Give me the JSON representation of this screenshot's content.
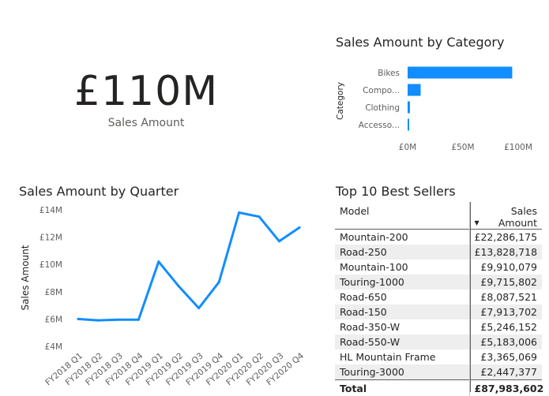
{
  "kpi": {
    "value": "£110M",
    "label": "Sales Amount"
  },
  "category_chart": {
    "title": "Sales Amount by Category",
    "ylabel": "Category",
    "categories": [
      "Bikes",
      "Compo...",
      "Clothing",
      "Accesso..."
    ],
    "x_ticks": [
      "£0M",
      "£50M",
      "£100M"
    ]
  },
  "quarter_chart": {
    "title": "Sales Amount by Quarter",
    "ylabel": "Sales Amount",
    "y_ticks": [
      "£4M",
      "£6M",
      "£8M",
      "£10M",
      "£12M",
      "£14M"
    ],
    "x_ticks": [
      "FY2018 Q1",
      "FY2018 Q2",
      "FY2018 Q3",
      "FY2018 Q4",
      "FY2019 Q1",
      "FY2019 Q2",
      "FY2019 Q3",
      "FY2019 Q4",
      "FY2020 Q1",
      "FY2020 Q2",
      "FY2020 Q3",
      "FY2020 Q4"
    ]
  },
  "table": {
    "title": "Top 10 Best Sellers",
    "columns": [
      "Model",
      "Sales Amount"
    ],
    "rows": [
      [
        "Mountain-200",
        "£22,286,175"
      ],
      [
        "Road-250",
        "£13,828,718"
      ],
      [
        "Mountain-100",
        "£9,910,079"
      ],
      [
        "Touring-1000",
        "£9,715,802"
      ],
      [
        "Road-650",
        "£8,087,521"
      ],
      [
        "Road-150",
        "£7,913,702"
      ],
      [
        "Road-350-W",
        "£5,246,152"
      ],
      [
        "Road-550-W",
        "£5,183,006"
      ],
      [
        "HL Mountain Frame",
        "£3,365,069"
      ],
      [
        "Touring-3000",
        "£2,447,377"
      ]
    ],
    "total": [
      "Total",
      "£87,983,602"
    ]
  },
  "colors": {
    "accent": "#118DFF",
    "text": "#252423",
    "subtle": "#605e5c",
    "band": "#eeeeee"
  },
  "chart_data": [
    {
      "type": "bar",
      "orientation": "horizontal",
      "title": "Sales Amount by Category",
      "ylabel": "Category",
      "categories": [
        "Bikes",
        "Compo...",
        "Clothing",
        "Accesso..."
      ],
      "values": [
        94.6,
        11.8,
        2.1,
        1.3
      ],
      "unit": "£M",
      "xlim": [
        0,
        100
      ],
      "x_ticks": [
        0,
        50,
        100
      ],
      "grid": false
    },
    {
      "type": "line",
      "title": "Sales Amount by Quarter",
      "ylabel": "Sales Amount",
      "x": [
        "FY2018 Q1",
        "FY2018 Q2",
        "FY2018 Q3",
        "FY2018 Q4",
        "FY2019 Q1",
        "FY2019 Q2",
        "FY2019 Q3",
        "FY2019 Q4",
        "FY2020 Q1",
        "FY2020 Q2",
        "FY2020 Q3",
        "FY2020 Q4"
      ],
      "values": [
        6.0,
        5.9,
        5.95,
        5.95,
        10.2,
        8.4,
        6.8,
        8.7,
        13.8,
        13.5,
        11.7,
        12.7
      ],
      "unit": "£M",
      "ylim": [
        4,
        14
      ],
      "y_ticks": [
        4,
        6,
        8,
        10,
        12,
        14
      ],
      "grid": false
    }
  ]
}
